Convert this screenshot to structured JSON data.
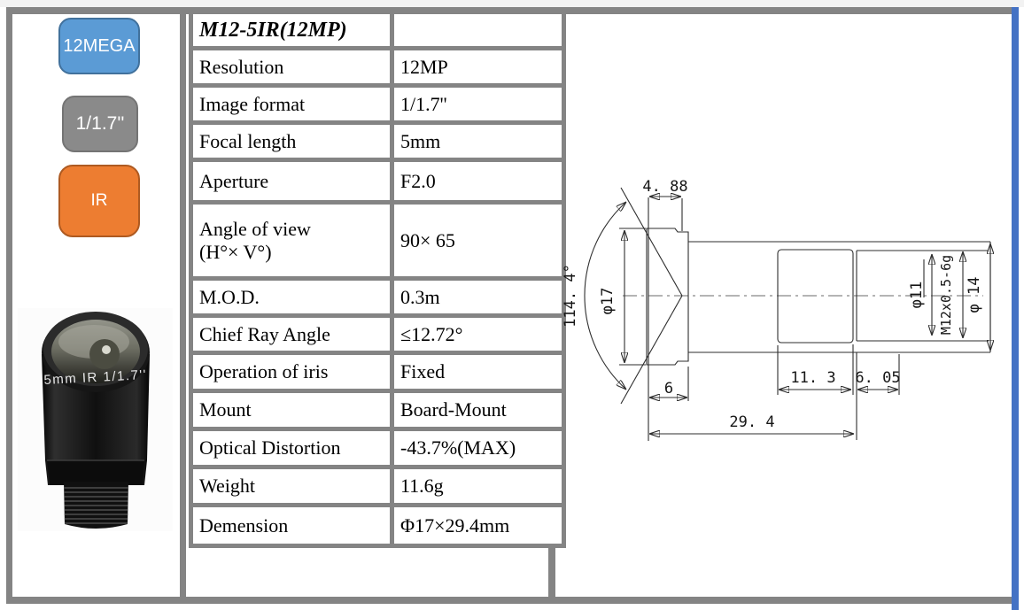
{
  "product": {
    "model": "M12-5IR(12MP)"
  },
  "badges": [
    {
      "label": "12MEGA",
      "fill": "#5B9BD5",
      "border": "#41719C"
    },
    {
      "label": "1/1.7''",
      "fill": "#8A8A8A",
      "border": "#747474"
    },
    {
      "label": "IR",
      "fill": "#ED7D31",
      "border": "#AE5A21"
    }
  ],
  "lens_photo": {
    "marking": "5mm IR 1/1.7''"
  },
  "spec_table": {
    "header": "M12-5IR(12MP)",
    "rows": [
      {
        "label": "Resolution",
        "value": "12MP"
      },
      {
        "label": "Image format",
        "value": "1/1.7''"
      },
      {
        "label": "Focal length",
        "value": "5mm"
      },
      {
        "label": "Aperture",
        "value": "F2.0"
      },
      {
        "label": "Angle of view\n(H°× V°)",
        "value": "90× 65"
      },
      {
        "label": "M.O.D.",
        "value": "0.3m"
      },
      {
        "label": "Chief Ray Angle",
        "value": "≤12.72°"
      },
      {
        "label": "Operation of iris",
        "value": "Fixed"
      },
      {
        "label": "Mount",
        "value": "Board-Mount"
      },
      {
        "label": "Optical Distortion",
        "value": "-43.7%(MAX)"
      },
      {
        "label": "Weight",
        "value": "11.6g"
      },
      {
        "label": "Demension",
        "value": "Φ17×29.4mm"
      }
    ]
  },
  "drawing": {
    "dimensions": {
      "front_width": "4. 88",
      "fov_angle": "114. 4°",
      "head_diameter": "φ17",
      "head_length": "6",
      "total_length": "29. 4",
      "body_length": "11. 3",
      "thread_length": "6. 05",
      "bore_diameter": "φ11",
      "thread_spec": "M12x0.5-6g",
      "barrel_diameter": "φ 14"
    }
  },
  "colors": {
    "frame_gray": "#848484",
    "accent_blue_bar": "#4472C4",
    "badge_blue": "#5B9BD5",
    "badge_gray": "#8A8A8A",
    "badge_orange": "#ED7D31"
  }
}
